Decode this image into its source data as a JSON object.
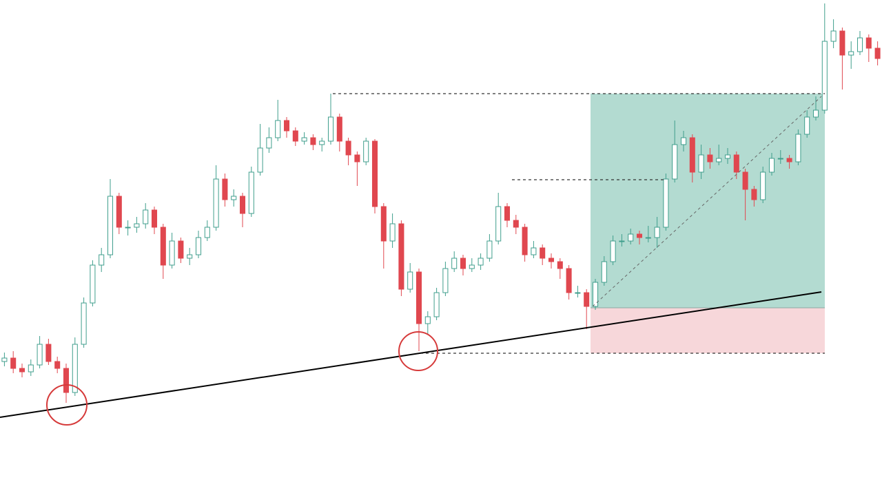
{
  "chart_data": {
    "type": "candlestick",
    "ylim": [
      0,
      700
    ],
    "up_color": "#3f9e8c",
    "down_color": "#e0474f",
    "open": [
      175,
      180,
      165,
      160,
      170,
      200,
      175,
      165,
      130,
      200,
      260,
      315,
      330,
      415,
      370,
      370,
      375,
      395,
      370,
      315,
      350,
      325,
      330,
      355,
      370,
      440,
      410,
      415,
      390,
      450,
      485,
      500,
      525,
      510,
      495,
      500,
      490,
      495,
      530,
      495,
      475,
      465,
      495,
      400,
      350,
      375,
      280,
      305,
      230,
      240,
      275,
      310,
      325,
      310,
      315,
      325,
      350,
      400,
      380,
      370,
      330,
      340,
      325,
      320,
      310,
      275,
      275,
      255,
      290,
      320,
      350,
      350,
      360,
      355,
      355,
      370,
      440,
      490,
      500,
      450,
      475,
      465,
      470,
      475,
      450,
      425,
      410,
      450,
      470,
      470,
      465,
      505,
      530,
      540,
      640,
      655,
      620,
      625,
      645,
      630
    ],
    "high": [
      188,
      190,
      172,
      178,
      212,
      208,
      182,
      172,
      210,
      268,
      322,
      340,
      440,
      420,
      380,
      385,
      405,
      400,
      375,
      362,
      355,
      340,
      365,
      380,
      460,
      448,
      425,
      420,
      458,
      520,
      515,
      555,
      530,
      515,
      508,
      505,
      500,
      564,
      535,
      500,
      480,
      500,
      498,
      405,
      390,
      380,
      318,
      310,
      248,
      282,
      320,
      335,
      330,
      325,
      332,
      360,
      420,
      405,
      388,
      375,
      350,
      345,
      332,
      325,
      315,
      285,
      280,
      295,
      328,
      358,
      360,
      368,
      365,
      372,
      385,
      448,
      525,
      510,
      505,
      490,
      485,
      490,
      485,
      480,
      455,
      430,
      458,
      478,
      482,
      475,
      512,
      540,
      560,
      695,
      672,
      660,
      640,
      655,
      650,
      640
    ],
    "low": [
      168,
      158,
      152,
      154,
      165,
      170,
      158,
      115,
      125,
      195,
      255,
      305,
      325,
      360,
      358,
      362,
      368,
      360,
      295,
      310,
      318,
      315,
      325,
      350,
      365,
      400,
      400,
      370,
      385,
      445,
      478,
      495,
      500,
      488,
      490,
      482,
      480,
      490,
      480,
      460,
      430,
      460,
      390,
      310,
      340,
      270,
      275,
      190,
      215,
      235,
      270,
      305,
      300,
      305,
      308,
      320,
      345,
      370,
      360,
      320,
      325,
      315,
      310,
      295,
      265,
      268,
      222,
      250,
      285,
      315,
      342,
      345,
      345,
      348,
      340,
      365,
      435,
      480,
      435,
      440,
      455,
      460,
      462,
      440,
      380,
      400,
      405,
      445,
      462,
      455,
      460,
      500,
      525,
      535,
      630,
      570,
      600,
      620,
      610,
      605
    ],
    "close": [
      180,
      165,
      160,
      170,
      200,
      175,
      165,
      130,
      200,
      260,
      315,
      330,
      415,
      370,
      370,
      375,
      395,
      370,
      315,
      350,
      325,
      330,
      355,
      370,
      440,
      410,
      415,
      390,
      450,
      485,
      500,
      525,
      510,
      495,
      500,
      490,
      495,
      530,
      495,
      475,
      465,
      495,
      400,
      350,
      375,
      280,
      305,
      230,
      240,
      275,
      310,
      325,
      310,
      315,
      325,
      350,
      400,
      380,
      370,
      330,
      340,
      325,
      320,
      310,
      275,
      275,
      255,
      290,
      320,
      350,
      350,
      360,
      355,
      355,
      370,
      440,
      490,
      500,
      450,
      475,
      465,
      470,
      475,
      450,
      425,
      410,
      450,
      470,
      470,
      465,
      505,
      530,
      540,
      640,
      655,
      620,
      625,
      645,
      630,
      615
    ]
  }
}
